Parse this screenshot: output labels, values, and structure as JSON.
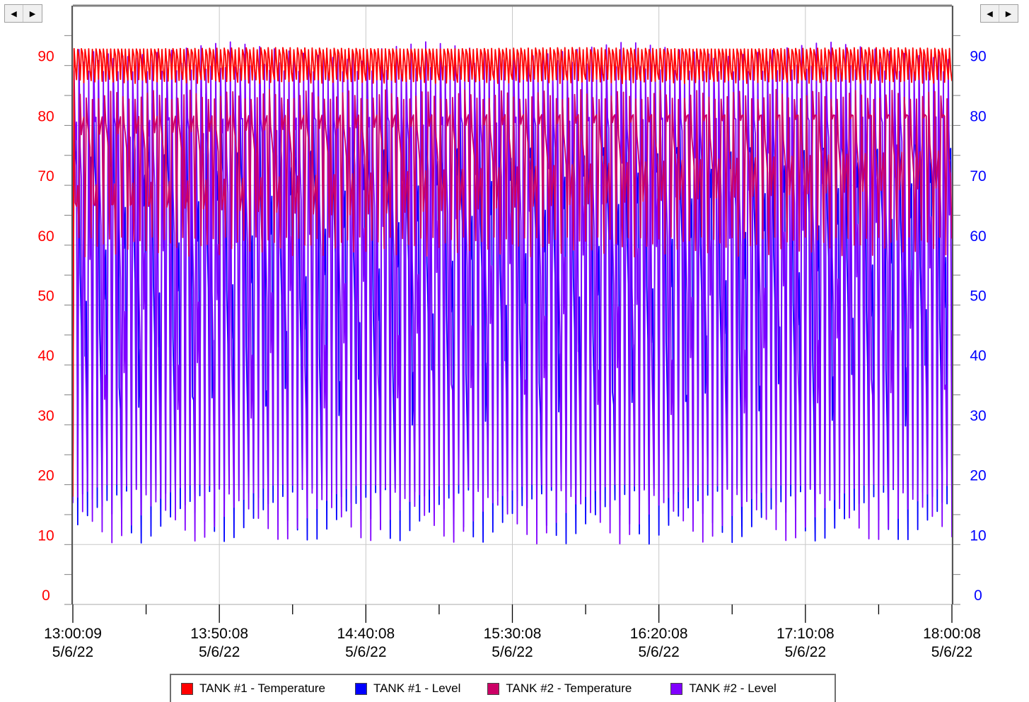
{
  "chart_data": {
    "type": "line",
    "x": [
      "13:00:09 5/6/22",
      "13:50:08 5/6/22",
      "14:40:08 5/6/22",
      "15:30:08 5/6/22",
      "16:20:08 5/6/22",
      "17:10:08 5/6/22",
      "18:00:08 5/6/22"
    ],
    "x_tick_labels": [
      {
        "time": "13:00:09",
        "date": "5/6/22"
      },
      {
        "time": "13:50:08",
        "date": "5/6/22"
      },
      {
        "time": "14:40:08",
        "date": "5/6/22"
      },
      {
        "time": "15:30:08",
        "date": "5/6/22"
      },
      {
        "time": "16:20:08",
        "date": "5/6/22"
      },
      {
        "time": "17:10:08",
        "date": "5/6/22"
      },
      {
        "time": "18:00:08",
        "date": "5/6/22"
      }
    ],
    "xlim": [
      "13:00:09 5/6/22",
      "18:00:08 5/6/22"
    ],
    "y_left": {
      "ticks": [
        "0",
        "10",
        "20",
        "30",
        "40",
        "50",
        "60",
        "70",
        "80",
        "90"
      ],
      "ylim": [
        0,
        100
      ],
      "color": "#ff0000"
    },
    "y_right": {
      "ticks": [
        "0",
        "10",
        "20",
        "30",
        "40",
        "50",
        "60",
        "70",
        "80",
        "90"
      ],
      "ylim": [
        0,
        100
      ],
      "color": "#0000ff"
    },
    "grid": true,
    "legend_position": "bottom",
    "series": [
      {
        "name": "TANK #1 - Temperature",
        "color": "#ff0000",
        "axis": "left",
        "oscillation": {
          "min": 87,
          "max": 93
        },
        "initial_value": 18
      },
      {
        "name": "TANK #1 - Level",
        "color": "#0000ff",
        "axis": "right",
        "oscillation": {
          "min": 10,
          "max": 88
        }
      },
      {
        "name": "TANK #2 - Temperature",
        "color": "#cc0066",
        "axis": "left",
        "oscillation": {
          "min": 58,
          "max": 86
        }
      },
      {
        "name": "TANK #2 - Level",
        "color": "#8000ff",
        "axis": "right",
        "oscillation": {
          "min": 10,
          "max": 94
        }
      }
    ]
  }
}
